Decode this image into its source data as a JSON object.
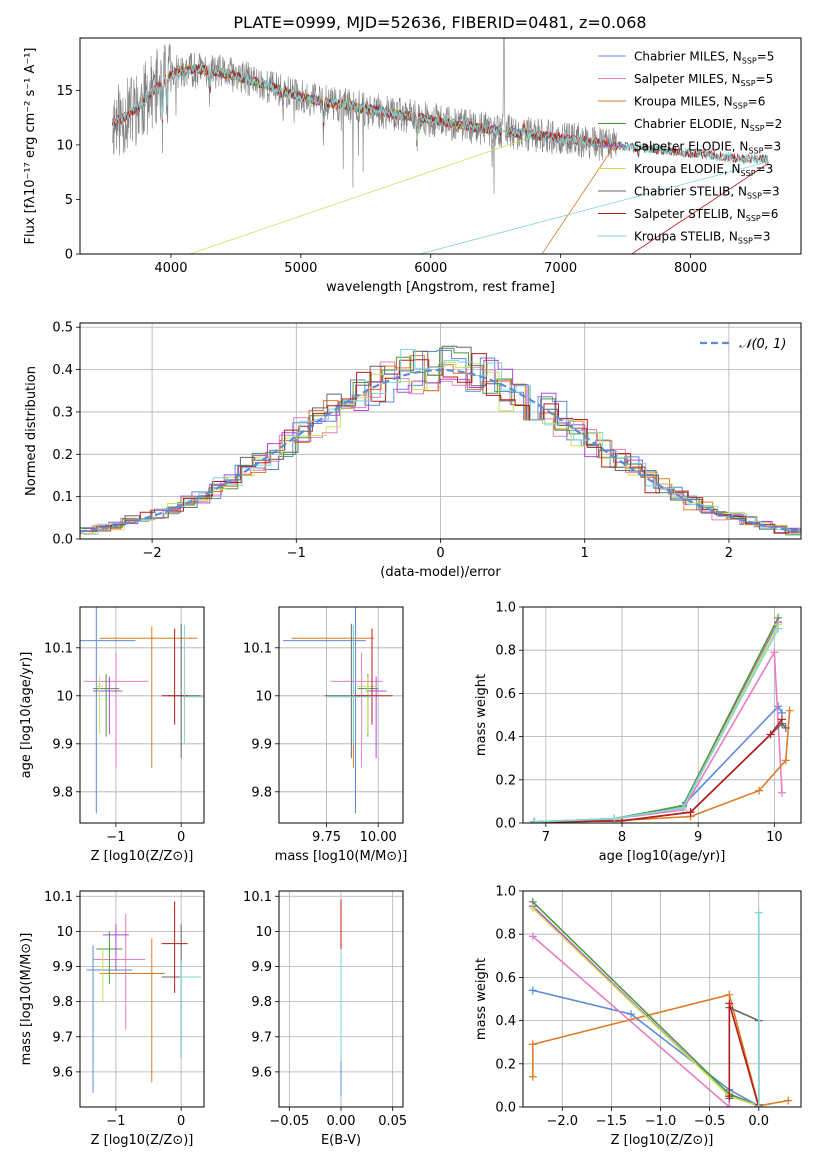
{
  "figure": {
    "title": "PLATE=0999, MJD=52636, FIBERID=0481, z=0.068"
  },
  "colors": {
    "chabrier_miles": "#5b8bd9",
    "salpeter_miles": "#e87ec2",
    "kroupa_miles": "#e07b25",
    "chabrier_elodie": "#4a9a3e",
    "salpeter_elodie": "#b04ad6",
    "kroupa_elodie": "#c9e35a",
    "chabrier_stelib": "#666666",
    "salpeter_stelib": "#b81d1d",
    "kroupa_stelib": "#7fd6d6",
    "data_spectrum": "#808080",
    "normal_curve": "#5b8bd9"
  },
  "chart_data": [
    {
      "id": "spectrum",
      "type": "line",
      "title": "PLATE=0999, MJD=52636, FIBERID=0481, z=0.068",
      "xlabel": "wavelength [Angstrom, rest frame]",
      "ylabel": "Flux [fλ10⁻¹⁷ erg cm⁻² s⁻¹ A⁻¹]",
      "xlim": [
        3300,
        8850
      ],
      "ylim": [
        0,
        19.8
      ],
      "xticks": [
        4000,
        5000,
        6000,
        7000,
        8000
      ],
      "yticks": [
        0,
        5,
        10,
        15
      ],
      "grid": false,
      "legend_position": "top-right",
      "legend": [
        "Chabrier MILES, N_SSP=5",
        "Salpeter MILES, N_SSP=5",
        "Kroupa MILES, N_SSP=6",
        "Chabrier ELODIE, N_SSP=2",
        "Salpeter ELODIE, N_SSP=3",
        "Kroupa ELODIE, N_SSP=3",
        "Chabrier STELIB, N_SSP=3",
        "Salpeter STELIB, N_SSP=6",
        "Kroupa STELIB, N_SSP=3"
      ],
      "continuum": {
        "x": [
          3550,
          3650,
          3750,
          3850,
          3950,
          4050,
          4150,
          4250,
          4400,
          4600,
          4800,
          5000,
          5200,
          5400,
          5600,
          5800,
          6000,
          6200,
          6400,
          6600,
          6800,
          7000,
          7200,
          7400,
          7600,
          7800,
          8000,
          8200,
          8400
        ],
        "y": [
          12.0,
          12.6,
          13.5,
          14.8,
          16.0,
          16.7,
          16.9,
          16.9,
          16.6,
          16.0,
          15.2,
          14.4,
          13.9,
          13.5,
          13.1,
          12.7,
          12.3,
          11.9,
          11.5,
          11.2,
          10.9,
          10.6,
          10.3,
          10.0,
          9.7,
          9.5,
          9.3,
          9.0,
          8.7
        ]
      },
      "features": [
        {
          "x": 3934,
          "depth": 5.0
        },
        {
          "x": 3969,
          "depth": 4.0
        },
        {
          "x": 4102,
          "depth": 1.5
        },
        {
          "x": 4300,
          "depth": 2.5
        },
        {
          "x": 4861,
          "depth": 1.5
        },
        {
          "x": 5175,
          "depth": 3.0
        },
        {
          "x": 5893,
          "depth": 2.5
        },
        {
          "x": 6563,
          "depth": -9.0
        },
        {
          "x": 6717,
          "depth": -1.5
        },
        {
          "x": 7600,
          "depth": 1.0
        }
      ],
      "model_drops": [
        {
          "series": "Kroupa ELODIE",
          "x": 3900
        },
        {
          "series": "Kroupa STELIB",
          "x": 5600
        },
        {
          "series": "Kroupa MILES",
          "x": 6800
        },
        {
          "series": "Salpeter STELIB",
          "x": 7420
        }
      ],
      "model_ranges": {
        "miles": [
          3550,
          7420
        ],
        "elodie": [
          3900,
          6800
        ],
        "stelib": [
          3550,
          8600
        ]
      }
    },
    {
      "id": "residuals",
      "type": "line",
      "xlabel": "(data-model)/error",
      "ylabel": "Normed distribution",
      "xlim": [
        -2.5,
        2.5
      ],
      "ylim": [
        0,
        0.51
      ],
      "xticks": [
        -2,
        -1,
        0,
        1,
        2
      ],
      "yticks": [
        0.0,
        0.1,
        0.2,
        0.3,
        0.4,
        0.5
      ],
      "grid": true,
      "legend_position": "top-right",
      "legend": [
        "𝒩(0, 1)"
      ],
      "normal": {
        "mu": 0,
        "sigma": 1
      },
      "bin_width": 0.1,
      "hist_jitter_seed": 7
    },
    {
      "id": "age_vs_Z",
      "type": "scatter",
      "xlabel": "Z [log10(Z/Z⊙)]",
      "ylabel": "age [log10(age/yr)]",
      "xlim": [
        -1.55,
        0.35
      ],
      "ylim": [
        9.735,
        10.185
      ],
      "xticks": [
        -1,
        0
      ],
      "yticks": [
        9.8,
        9.9,
        10.0,
        10.1
      ],
      "grid": true,
      "points": [
        {
          "series": "Chabrier MILES",
          "x": -1.3,
          "y": 10.115,
          "xerr": [
            0.4,
            0.6
          ],
          "yerr": [
            0.36,
            0.1
          ]
        },
        {
          "series": "Salpeter MILES",
          "x": -1.0,
          "y": 10.03,
          "xerr": [
            0.5,
            0.5
          ],
          "yerr": [
            0.18,
            0.06
          ]
        },
        {
          "series": "Kroupa MILES",
          "x": -0.45,
          "y": 10.12,
          "xerr": [
            0.8,
            0.7
          ],
          "yerr": [
            0.27,
            0.025
          ]
        },
        {
          "series": "Chabrier ELODIE",
          "x": -1.15,
          "y": 10.015,
          "xerr": [
            0.2,
            0.2
          ],
          "yerr": [
            0.1,
            0.03
          ]
        },
        {
          "series": "Salpeter ELODIE",
          "x": -1.1,
          "y": 10.01,
          "xerr": [
            0.25,
            0.2
          ],
          "yerr": [
            0.09,
            0.03
          ]
        },
        {
          "series": "Kroupa ELODIE",
          "x": -1.25,
          "y": 10.02,
          "xerr": [
            0.05,
            0.05
          ],
          "yerr": [
            0.1,
            0.02
          ]
        },
        {
          "series": "Chabrier STELIB",
          "x": 0.0,
          "y": 10.0,
          "xerr": [
            0.2,
            0.3
          ],
          "yerr": [
            0.13,
            0.15
          ]
        },
        {
          "series": "Salpeter STELIB",
          "x": -0.1,
          "y": 10.0,
          "xerr": [
            0.2,
            0.2
          ],
          "yerr": [
            0.06,
            0.14
          ]
        },
        {
          "series": "Kroupa STELIB",
          "x": 0.05,
          "y": 9.998,
          "xerr": [
            0.02,
            0.3
          ],
          "yerr": [
            0.1,
            0.15
          ]
        }
      ]
    },
    {
      "id": "age_vs_mass",
      "type": "scatter",
      "xlabel": "mass [log10(M/M⊙)]",
      "ylabel": "",
      "xlim": [
        9.52,
        10.12
      ],
      "ylim": [
        9.735,
        10.185
      ],
      "xticks": [
        9.75,
        10.0
      ],
      "xtick_labels": [
        "9.75",
        "10.00"
      ],
      "yticks": [
        9.8,
        9.9,
        10.0,
        10.1
      ],
      "grid": true,
      "points": [
        {
          "series": "Chabrier MILES",
          "x": 9.89,
          "y": 10.115,
          "xerr": [
            0.35,
            0.05
          ],
          "yerr": [
            0.36,
            0.1
          ]
        },
        {
          "series": "Salpeter MILES",
          "x": 9.92,
          "y": 10.03,
          "xerr": [
            0.15,
            0.1
          ],
          "yerr": [
            0.18,
            0.06
          ]
        },
        {
          "series": "Kroupa MILES",
          "x": 9.88,
          "y": 10.12,
          "xerr": [
            0.3,
            0.1
          ],
          "yerr": [
            0.27,
            0.025
          ]
        },
        {
          "series": "Chabrier ELODIE",
          "x": 9.95,
          "y": 10.015,
          "xerr": [
            0.05,
            0.05
          ],
          "yerr": [
            0.1,
            0.03
          ]
        },
        {
          "series": "Salpeter ELODIE",
          "x": 9.99,
          "y": 10.01,
          "xerr": [
            0.05,
            0.05
          ],
          "yerr": [
            0.14,
            0.03
          ]
        },
        {
          "series": "Kroupa ELODIE",
          "x": 9.95,
          "y": 10.02,
          "xerr": [
            0.05,
            0.05
          ],
          "yerr": [
            0.1,
            0.02
          ]
        },
        {
          "series": "Chabrier STELIB",
          "x": 9.87,
          "y": 10.0,
          "xerr": [
            0.13,
            0.08
          ],
          "yerr": [
            0.13,
            0.15
          ]
        },
        {
          "series": "Salpeter STELIB",
          "x": 9.97,
          "y": 10.0,
          "xerr": [
            0.1,
            0.1
          ],
          "yerr": [
            0.06,
            0.14
          ]
        },
        {
          "series": "Kroupa STELIB",
          "x": 9.88,
          "y": 9.998,
          "xerr": [
            0.13,
            0.1
          ],
          "yerr": [
            0.1,
            0.15
          ]
        }
      ]
    },
    {
      "id": "weight_vs_age",
      "type": "line",
      "xlabel": "age [log10(age/yr)]",
      "ylabel": "mass weight",
      "xlim": [
        6.7,
        10.35
      ],
      "ylim": [
        0,
        1.0
      ],
      "xticks": [
        7,
        8,
        9,
        10
      ],
      "yticks": [
        0.0,
        0.2,
        0.4,
        0.6,
        0.8,
        1.0
      ],
      "grid": true,
      "series": [
        {
          "name": "Chabrier MILES",
          "x": [
            6.85,
            7.9,
            8.8,
            10.05,
            10.1
          ],
          "y": [
            0.005,
            0.02,
            0.08,
            0.54,
            0.51
          ]
        },
        {
          "name": "Salpeter MILES",
          "x": [
            6.85,
            7.9,
            8.8,
            10.0,
            10.1
          ],
          "y": [
            0.005,
            0.02,
            0.06,
            0.79,
            0.14
          ]
        },
        {
          "name": "Kroupa MILES",
          "x": [
            6.85,
            7.9,
            8.9,
            9.8,
            10.15,
            10.2
          ],
          "y": [
            0.005,
            0.01,
            0.03,
            0.15,
            0.29,
            0.52
          ]
        },
        {
          "name": "Chabrier ELODIE",
          "x": [
            6.85,
            7.9,
            8.8,
            10.05
          ],
          "y": [
            0.005,
            0.02,
            0.08,
            0.95
          ]
        },
        {
          "name": "Salpeter ELODIE",
          "x": [
            6.85,
            7.9,
            8.8,
            10.05
          ],
          "y": [
            0.005,
            0.02,
            0.07,
            0.93
          ]
        },
        {
          "name": "Kroupa ELODIE",
          "x": [
            6.85,
            7.9,
            8.8,
            10.05
          ],
          "y": [
            0.005,
            0.02,
            0.07,
            0.92
          ]
        },
        {
          "name": "Chabrier STELIB",
          "x": [
            6.85,
            8.0,
            8.9,
            10.1,
            10.15
          ],
          "y": [
            0.005,
            0.01,
            0.05,
            0.46,
            0.44
          ]
        },
        {
          "name": "Salpeter STELIB",
          "x": [
            6.85,
            8.0,
            8.9,
            9.95,
            10.1
          ],
          "y": [
            0.005,
            0.01,
            0.05,
            0.41,
            0.48
          ]
        },
        {
          "name": "Kroupa STELIB",
          "x": [
            6.85,
            7.9,
            8.8,
            10.05
          ],
          "y": [
            0.005,
            0.02,
            0.07,
            0.9
          ]
        }
      ]
    },
    {
      "id": "mass_vs_Z",
      "type": "scatter",
      "xlabel": "Z [log10(Z/Z⊙)]",
      "ylabel": "mass [log10(M/M⊙)]",
      "xlim": [
        -1.55,
        0.35
      ],
      "ylim": [
        9.5,
        10.115
      ],
      "xticks": [
        -1,
        0
      ],
      "yticks": [
        9.6,
        9.7,
        9.8,
        9.9,
        10.0,
        10.1
      ],
      "grid": true,
      "points": [
        {
          "series": "Chabrier MILES",
          "x": -1.35,
          "y": 9.89,
          "xerr": [
            0.1,
            0.6
          ],
          "yerr": [
            0.35,
            0.07
          ]
        },
        {
          "series": "Salpeter MILES",
          "x": -0.85,
          "y": 9.92,
          "xerr": [
            0.5,
            0.3
          ],
          "yerr": [
            0.2,
            0.13
          ]
        },
        {
          "series": "Kroupa MILES",
          "x": -0.45,
          "y": 9.88,
          "xerr": [
            0.8,
            0.2
          ],
          "yerr": [
            0.31,
            0.1
          ]
        },
        {
          "series": "Chabrier ELODIE",
          "x": -1.1,
          "y": 9.95,
          "xerr": [
            0.2,
            0.2
          ],
          "yerr": [
            0.1,
            0.05
          ]
        },
        {
          "series": "Salpeter ELODIE",
          "x": -1.0,
          "y": 9.99,
          "xerr": [
            0.2,
            0.2
          ],
          "yerr": [
            0.1,
            0.03
          ]
        },
        {
          "series": "Kroupa ELODIE",
          "x": -1.2,
          "y": 9.9,
          "xerr": [
            0.05,
            0.05
          ],
          "yerr": [
            0.1,
            0.05
          ]
        },
        {
          "series": "Chabrier STELIB",
          "x": 0.0,
          "y": 9.87,
          "xerr": [
            0.3,
            0.3
          ],
          "yerr": [
            0.23,
            0.15
          ]
        },
        {
          "series": "Salpeter STELIB",
          "x": -0.1,
          "y": 9.965,
          "xerr": [
            0.2,
            0.2
          ],
          "yerr": [
            0.14,
            0.12
          ]
        },
        {
          "series": "Kroupa STELIB",
          "x": 0.0,
          "y": 9.87,
          "xerr": [
            0.02,
            0.3
          ],
          "yerr": [
            0.23,
            0.05
          ]
        }
      ]
    },
    {
      "id": "mass_vs_ebv",
      "type": "scatter",
      "xlabel": "E(B-V)",
      "ylabel": "",
      "xlim": [
        -0.06,
        0.06
      ],
      "ylim": [
        9.5,
        10.115
      ],
      "xticks": [
        -0.05,
        0.0,
        0.05
      ],
      "xtick_labels": [
        "−0.05",
        "0.00",
        "0.05"
      ],
      "yticks": [
        9.6,
        9.7,
        9.8,
        9.9,
        10.0,
        10.1
      ],
      "grid": true,
      "points": [
        {
          "series": "Kroupa MILES",
          "x": 0.0,
          "y": 9.6,
          "xerr": [
            0,
            0
          ],
          "yerr": [
            0.05,
            0.05
          ]
        },
        {
          "series": "Chabrier MILES",
          "x": 0.0,
          "y": 9.6,
          "xerr": [
            0,
            0
          ],
          "yerr": [
            0.07,
            0.04
          ]
        },
        {
          "series": "Salpeter STELIB",
          "x": 0.0,
          "y": 10.0,
          "xerr": [
            0,
            0
          ],
          "yerr": [
            0.05,
            0.09
          ]
        },
        {
          "series": "Kroupa STELIB",
          "x": 0.0,
          "y": 9.75,
          "xerr": [
            0,
            0
          ],
          "yerr": [
            0.12,
            0.2
          ]
        }
      ]
    },
    {
      "id": "weight_vs_Z",
      "type": "line",
      "xlabel": "Z [log10(Z/Z⊙)]",
      "ylabel": "mass weight",
      "xlim": [
        -2.4,
        0.43
      ],
      "ylim": [
        0,
        1.0
      ],
      "xticks": [
        -2.0,
        -1.5,
        -1.0,
        -0.5,
        0.0
      ],
      "xtick_labels": [
        "−2.0",
        "−1.5",
        "−1.0",
        "−0.5",
        "0.0"
      ],
      "yticks": [
        0.0,
        0.2,
        0.4,
        0.6,
        0.8,
        1.0
      ],
      "grid": true,
      "series": [
        {
          "name": "Chabrier MILES",
          "x": [
            -2.3,
            -1.3,
            -0.3,
            0.0
          ],
          "y": [
            0.54,
            0.43,
            0.08,
            0.005
          ]
        },
        {
          "name": "Salpeter MILES",
          "x": [
            -2.3,
            -0.3,
            -0.3,
            0.0
          ],
          "y": [
            0.79,
            0.0,
            0.06,
            0.005
          ]
        },
        {
          "name": "Kroupa MILES",
          "x": [
            -2.3,
            -2.3,
            -0.3,
            0.0,
            0.3
          ],
          "y": [
            0.14,
            0.29,
            0.52,
            0.005,
            0.03
          ]
        },
        {
          "name": "Chabrier ELODIE",
          "x": [
            -2.3,
            -0.3,
            0.0
          ],
          "y": [
            0.95,
            0.06,
            0.005
          ]
        },
        {
          "name": "Salpeter ELODIE",
          "x": [
            -2.3,
            -0.3,
            0.0
          ],
          "y": [
            0.93,
            0.05,
            0.005
          ]
        },
        {
          "name": "Kroupa ELODIE",
          "x": [
            -2.3,
            -0.3,
            0.0
          ],
          "y": [
            0.92,
            0.05,
            0.005
          ]
        },
        {
          "name": "Chabrier STELIB",
          "x": [
            -0.3,
            -0.3,
            0.0,
            0.0
          ],
          "y": [
            0.04,
            0.46,
            0.4,
            0.005
          ]
        },
        {
          "name": "Salpeter STELIB",
          "x": [
            -0.3,
            -0.3,
            0.0,
            0.0
          ],
          "y": [
            0.05,
            0.48,
            0.0,
            0.01
          ]
        },
        {
          "name": "Kroupa STELIB",
          "x": [
            -0.0,
            -0.0,
            0.0
          ],
          "y": [
            0.005,
            0.9,
            0.0
          ]
        }
      ]
    }
  ]
}
